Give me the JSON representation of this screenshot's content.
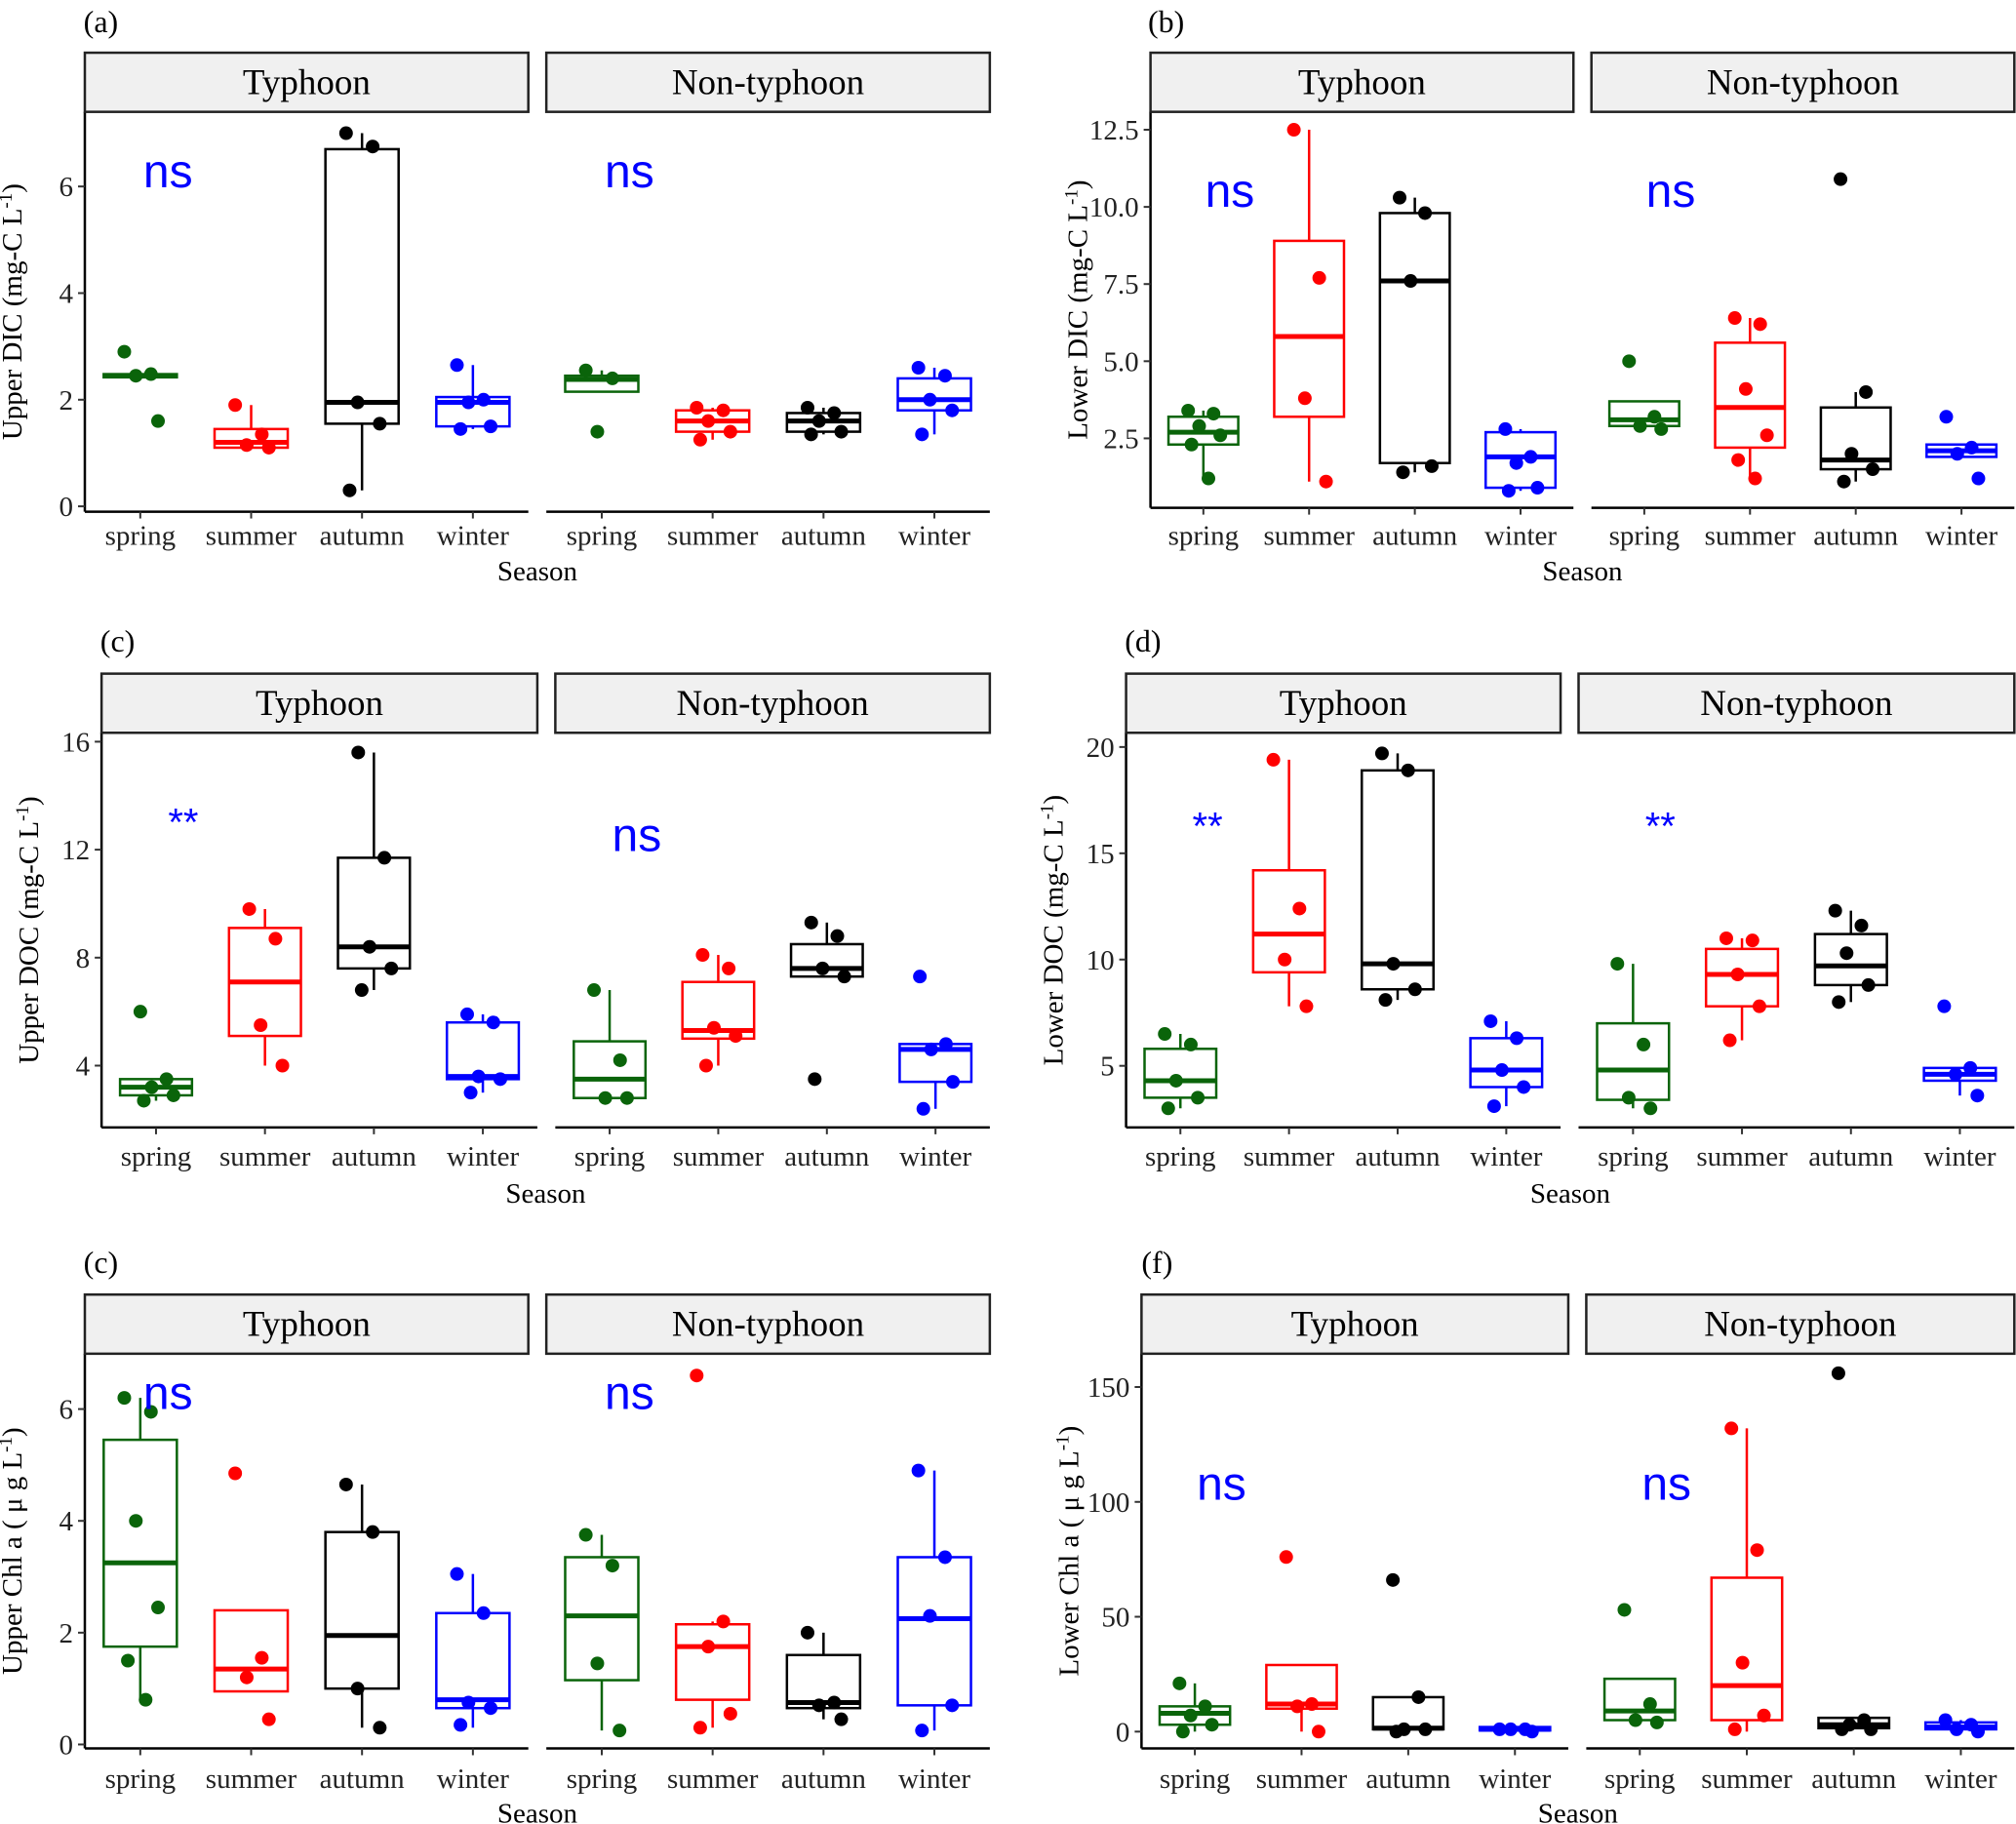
{
  "season_colors": {
    "spring": "#0a640a",
    "summer": "#ff0000",
    "autumn": "#000000",
    "winter": "#0000ff"
  },
  "annotation_color": "#0000ff",
  "strip_fill": "#f0f0f0",
  "chart_data": [
    {
      "panel_label": "(a)",
      "type": "boxplot",
      "ylabel": "Upper DIC (mg-C L",
      "ylabel_sup": "-1",
      "ylabel_end": ")",
      "xlabel": "Season",
      "ylim": [
        -0.1,
        7.4
      ],
      "yticks": [
        0,
        2,
        4,
        6
      ],
      "grid": false,
      "categories": [
        "spring",
        "summer",
        "autumn",
        "winter"
      ],
      "facets": [
        {
          "name": "Typhoon",
          "annotation": "ns",
          "boxes": [
            {
              "q1": 2.42,
              "median": 2.45,
              "q3": 2.48,
              "lo": 2.4,
              "hi": 2.5,
              "points": [
                2.9,
                2.48,
                2.45,
                1.6
              ]
            },
            {
              "q1": 1.1,
              "median": 1.2,
              "q3": 1.45,
              "lo": 1.1,
              "hi": 1.9,
              "points": [
                1.9,
                1.35,
                1.15,
                1.1
              ]
            },
            {
              "q1": 1.55,
              "median": 1.95,
              "q3": 6.7,
              "lo": 0.3,
              "hi": 7.0,
              "points": [
                7.0,
                6.75,
                1.95,
                1.55,
                0.3
              ]
            },
            {
              "q1": 1.5,
              "median": 1.95,
              "q3": 2.05,
              "lo": 1.45,
              "hi": 2.65,
              "points": [
                2.65,
                2.0,
                1.95,
                1.5,
                1.45
              ]
            }
          ]
        },
        {
          "name": "Non-typhoon",
          "annotation": "ns",
          "boxes": [
            {
              "q1": 2.15,
              "median": 2.38,
              "q3": 2.45,
              "lo": 2.15,
              "hi": 2.55,
              "points": [
                2.55,
                2.4,
                1.4
              ]
            },
            {
              "q1": 1.4,
              "median": 1.6,
              "q3": 1.8,
              "lo": 1.25,
              "hi": 1.85,
              "points": [
                1.85,
                1.8,
                1.6,
                1.4,
                1.25
              ]
            },
            {
              "q1": 1.4,
              "median": 1.6,
              "q3": 1.75,
              "lo": 1.35,
              "hi": 1.85,
              "points": [
                1.85,
                1.75,
                1.6,
                1.4,
                1.35
              ]
            },
            {
              "q1": 1.8,
              "median": 2.0,
              "q3": 2.4,
              "lo": 1.35,
              "hi": 2.6,
              "points": [
                2.6,
                2.45,
                2.0,
                1.8,
                1.35
              ]
            }
          ]
        }
      ]
    },
    {
      "panel_label": "(b)",
      "type": "boxplot",
      "ylabel": "Lower DIC (mg-C L",
      "ylabel_sup": "-1",
      "ylabel_end": ")",
      "xlabel": "Season",
      "ylim": [
        0.25,
        13.08
      ],
      "yticks": [
        2.5,
        5.0,
        7.5,
        10.0,
        12.5
      ],
      "grid": false,
      "categories": [
        "spring",
        "summer",
        "autumn",
        "winter"
      ],
      "facets": [
        {
          "name": "Typhoon",
          "annotation": "ns",
          "boxes": [
            {
              "q1": 2.3,
              "median": 2.7,
              "q3": 3.2,
              "lo": 1.2,
              "hi": 3.4,
              "points": [
                3.4,
                3.3,
                2.9,
                2.6,
                2.3,
                1.2
              ]
            },
            {
              "q1": 3.2,
              "median": 5.8,
              "q3": 8.9,
              "lo": 1.1,
              "hi": 12.5,
              "points": [
                12.5,
                7.7,
                3.8,
                1.1
              ]
            },
            {
              "q1": 1.7,
              "median": 7.6,
              "q3": 9.8,
              "lo": 1.4,
              "hi": 10.3,
              "points": [
                10.3,
                9.8,
                7.6,
                1.6,
                1.4
              ]
            },
            {
              "q1": 0.9,
              "median": 1.9,
              "q3": 2.7,
              "lo": 0.8,
              "hi": 2.8,
              "points": [
                2.8,
                1.9,
                1.7,
                0.9,
                0.8
              ]
            }
          ]
        },
        {
          "name": "Non-typhoon",
          "annotation": "ns",
          "boxes": [
            {
              "q1": 2.9,
              "median": 3.1,
              "q3": 3.7,
              "lo": 2.8,
              "hi": 3.7,
              "points": [
                5.0,
                3.2,
                2.9,
                2.8
              ]
            },
            {
              "q1": 2.2,
              "median": 3.5,
              "q3": 5.6,
              "lo": 1.2,
              "hi": 6.4,
              "points": [
                6.4,
                6.2,
                4.1,
                2.6,
                1.8,
                1.2
              ]
            },
            {
              "q1": 1.5,
              "median": 1.8,
              "q3": 3.5,
              "lo": 1.1,
              "hi": 4.0,
              "points": [
                10.9,
                4.0,
                2.0,
                1.5,
                1.1
              ]
            },
            {
              "q1": 1.9,
              "median": 2.1,
              "q3": 2.3,
              "lo": 1.9,
              "hi": 2.3,
              "points": [
                3.2,
                2.2,
                2.0,
                1.2
              ]
            }
          ]
        }
      ]
    },
    {
      "panel_label": "(c)",
      "type": "boxplot",
      "ylabel": "Upper DOC (mg-C L",
      "ylabel_sup": "-1",
      "ylabel_end": ")",
      "xlabel": "Season",
      "ylim": [
        1.71,
        16.33
      ],
      "yticks": [
        4,
        8,
        12,
        16
      ],
      "grid": false,
      "categories": [
        "spring",
        "summer",
        "autumn",
        "winter"
      ],
      "facets": [
        {
          "name": "Typhoon",
          "annotation": "**",
          "boxes": [
            {
              "q1": 2.9,
              "median": 3.2,
              "q3": 3.5,
              "lo": 2.7,
              "hi": 3.5,
              "points": [
                6.0,
                3.5,
                3.2,
                2.9,
                2.7
              ]
            },
            {
              "q1": 5.1,
              "median": 7.1,
              "q3": 9.1,
              "lo": 4.0,
              "hi": 9.8,
              "points": [
                9.8,
                8.7,
                5.5,
                4.0
              ]
            },
            {
              "q1": 7.6,
              "median": 8.4,
              "q3": 11.7,
              "lo": 6.8,
              "hi": 15.6,
              "points": [
                15.6,
                11.7,
                8.4,
                7.6,
                6.8
              ]
            },
            {
              "q1": 3.5,
              "median": 3.6,
              "q3": 5.6,
              "lo": 3.0,
              "hi": 5.9,
              "points": [
                5.9,
                5.6,
                3.6,
                3.5,
                3.0
              ]
            }
          ]
        },
        {
          "name": "Non-typhoon",
          "annotation": "ns",
          "boxes": [
            {
              "q1": 2.8,
              "median": 3.5,
              "q3": 4.9,
              "lo": 2.8,
              "hi": 6.8,
              "points": [
                6.8,
                4.2,
                2.8,
                2.8
              ]
            },
            {
              "q1": 5.0,
              "median": 5.3,
              "q3": 7.1,
              "lo": 4.0,
              "hi": 8.1,
              "points": [
                8.1,
                7.6,
                5.4,
                5.1,
                4.0
              ]
            },
            {
              "q1": 7.3,
              "median": 7.6,
              "q3": 8.5,
              "lo": 7.3,
              "hi": 9.3,
              "points": [
                9.3,
                8.8,
                7.6,
                7.3,
                3.5
              ]
            },
            {
              "q1": 3.4,
              "median": 4.6,
              "q3": 4.8,
              "lo": 2.4,
              "hi": 4.8,
              "points": [
                7.3,
                4.8,
                4.6,
                3.4,
                2.4
              ]
            }
          ]
        }
      ]
    },
    {
      "panel_label": "(d)",
      "type": "boxplot",
      "ylabel": "Lower DOC (mg-C L",
      "ylabel_sup": "-1",
      "ylabel_end": ")",
      "xlabel": "Season",
      "ylim": [
        2.1,
        20.67
      ],
      "yticks": [
        5,
        10,
        15,
        20
      ],
      "grid": false,
      "categories": [
        "spring",
        "summer",
        "autumn",
        "winter"
      ],
      "facets": [
        {
          "name": "Typhoon",
          "annotation": "**",
          "boxes": [
            {
              "q1": 3.5,
              "median": 4.3,
              "q3": 5.8,
              "lo": 3.0,
              "hi": 6.5,
              "points": [
                6.5,
                6.0,
                4.3,
                3.5,
                3.0
              ]
            },
            {
              "q1": 9.4,
              "median": 11.2,
              "q3": 14.2,
              "lo": 7.8,
              "hi": 19.4,
              "points": [
                19.4,
                12.4,
                10.0,
                7.8
              ]
            },
            {
              "q1": 8.6,
              "median": 9.8,
              "q3": 18.9,
              "lo": 8.1,
              "hi": 19.7,
              "points": [
                19.7,
                18.9,
                9.8,
                8.6,
                8.1
              ]
            },
            {
              "q1": 4.0,
              "median": 4.8,
              "q3": 6.3,
              "lo": 3.1,
              "hi": 7.1,
              "points": [
                7.1,
                6.3,
                4.8,
                4.0,
                3.1
              ]
            }
          ]
        },
        {
          "name": "Non-typhoon",
          "annotation": "**",
          "boxes": [
            {
              "q1": 3.4,
              "median": 4.8,
              "q3": 7.0,
              "lo": 3.0,
              "hi": 9.8,
              "points": [
                9.8,
                6.0,
                3.5,
                3.0
              ]
            },
            {
              "q1": 7.8,
              "median": 9.3,
              "q3": 10.5,
              "lo": 6.2,
              "hi": 11.0,
              "points": [
                11.0,
                10.9,
                9.3,
                7.8,
                6.2
              ]
            },
            {
              "q1": 8.8,
              "median": 9.7,
              "q3": 11.2,
              "lo": 8.0,
              "hi": 12.3,
              "points": [
                12.3,
                11.6,
                10.3,
                8.8,
                8.0
              ]
            },
            {
              "q1": 4.3,
              "median": 4.6,
              "q3": 4.9,
              "lo": 3.6,
              "hi": 4.9,
              "points": [
                7.8,
                4.9,
                4.6,
                3.6
              ]
            }
          ]
        }
      ]
    },
    {
      "panel_label": "(c)",
      "type": "boxplot",
      "ylabel": "Upper Chl a ( μ g L",
      "ylabel_sup": "-1",
      "ylabel_end": ")",
      "xlabel": "Season",
      "ylim": [
        -0.07,
        6.99
      ],
      "yticks": [
        0,
        2,
        4,
        6
      ],
      "grid": false,
      "categories": [
        "spring",
        "summer",
        "autumn",
        "winter"
      ],
      "facets": [
        {
          "name": "Typhoon",
          "annotation": "ns",
          "boxes": [
            {
              "q1": 1.75,
              "median": 3.25,
              "q3": 5.45,
              "lo": 0.8,
              "hi": 6.2,
              "points": [
                6.2,
                5.95,
                4.0,
                2.45,
                1.5,
                0.8
              ]
            },
            {
              "q1": 0.95,
              "median": 1.35,
              "q3": 2.4,
              "lo": 0.95,
              "hi": 2.4,
              "points": [
                4.85,
                1.55,
                1.2,
                0.45
              ]
            },
            {
              "q1": 1.0,
              "median": 1.95,
              "q3": 3.8,
              "lo": 0.3,
              "hi": 4.65,
              "points": [
                4.65,
                3.8,
                1.0,
                0.3
              ]
            },
            {
              "q1": 0.65,
              "median": 0.8,
              "q3": 2.35,
              "lo": 0.3,
              "hi": 3.05,
              "points": [
                3.05,
                2.35,
                0.75,
                0.65,
                0.35
              ]
            }
          ]
        },
        {
          "name": "Non-typhoon",
          "annotation": "ns",
          "boxes": [
            {
              "q1": 1.15,
              "median": 2.3,
              "q3": 3.35,
              "lo": 0.25,
              "hi": 3.75,
              "points": [
                3.75,
                3.2,
                1.45,
                0.25
              ]
            },
            {
              "q1": 0.8,
              "median": 1.75,
              "q3": 2.15,
              "lo": 0.3,
              "hi": 2.2,
              "points": [
                6.6,
                2.2,
                1.75,
                0.55,
                0.3
              ]
            },
            {
              "q1": 0.65,
              "median": 0.75,
              "q3": 1.6,
              "lo": 0.45,
              "hi": 2.0,
              "points": [
                2.0,
                0.75,
                0.7,
                0.45
              ]
            },
            {
              "q1": 0.7,
              "median": 2.25,
              "q3": 3.35,
              "lo": 0.25,
              "hi": 4.9,
              "points": [
                4.9,
                3.35,
                2.3,
                0.7,
                0.25
              ]
            }
          ]
        }
      ]
    },
    {
      "panel_label": "(f)",
      "type": "boxplot",
      "ylabel": "Lower Chl a ( μ g L",
      "ylabel_sup": "-1",
      "ylabel_end": ")",
      "xlabel": "Season",
      "ylim": [
        -7.3,
        164.5
      ],
      "yticks": [
        0,
        50,
        100,
        150
      ],
      "grid": false,
      "categories": [
        "spring",
        "summer",
        "autumn",
        "winter"
      ],
      "facets": [
        {
          "name": "Typhoon",
          "annotation": "ns",
          "boxes": [
            {
              "q1": 3,
              "median": 8,
              "q3": 11,
              "lo": 0,
              "hi": 21,
              "points": [
                21,
                11,
                7,
                3,
                0
              ]
            },
            {
              "q1": 10,
              "median": 12,
              "q3": 29,
              "lo": 0,
              "hi": 29,
              "points": [
                76,
                12,
                11,
                0
              ]
            },
            {
              "q1": 1,
              "median": 1.5,
              "q3": 15,
              "lo": 0,
              "hi": 15,
              "points": [
                66,
                15,
                1,
                1,
                0
              ]
            },
            {
              "q1": 0.5,
              "median": 1,
              "q3": 2,
              "lo": 0,
              "hi": 2,
              "points": [
                1,
                1,
                1,
                0
              ]
            }
          ]
        },
        {
          "name": "Non-typhoon",
          "annotation": "ns",
          "boxes": [
            {
              "q1": 5,
              "median": 9,
              "q3": 23,
              "lo": 4,
              "hi": 23,
              "points": [
                53,
                12,
                5,
                4
              ]
            },
            {
              "q1": 5,
              "median": 20,
              "q3": 67,
              "lo": 0,
              "hi": 132,
              "points": [
                132,
                79,
                30,
                7,
                1
              ]
            },
            {
              "q1": 1.5,
              "median": 3,
              "q3": 6,
              "lo": 1,
              "hi": 6,
              "points": [
                156,
                5,
                3,
                1,
                1
              ]
            },
            {
              "q1": 1,
              "median": 2,
              "q3": 4,
              "lo": 0,
              "hi": 5,
              "points": [
                5,
                3,
                1,
                0
              ]
            }
          ]
        }
      ]
    }
  ]
}
